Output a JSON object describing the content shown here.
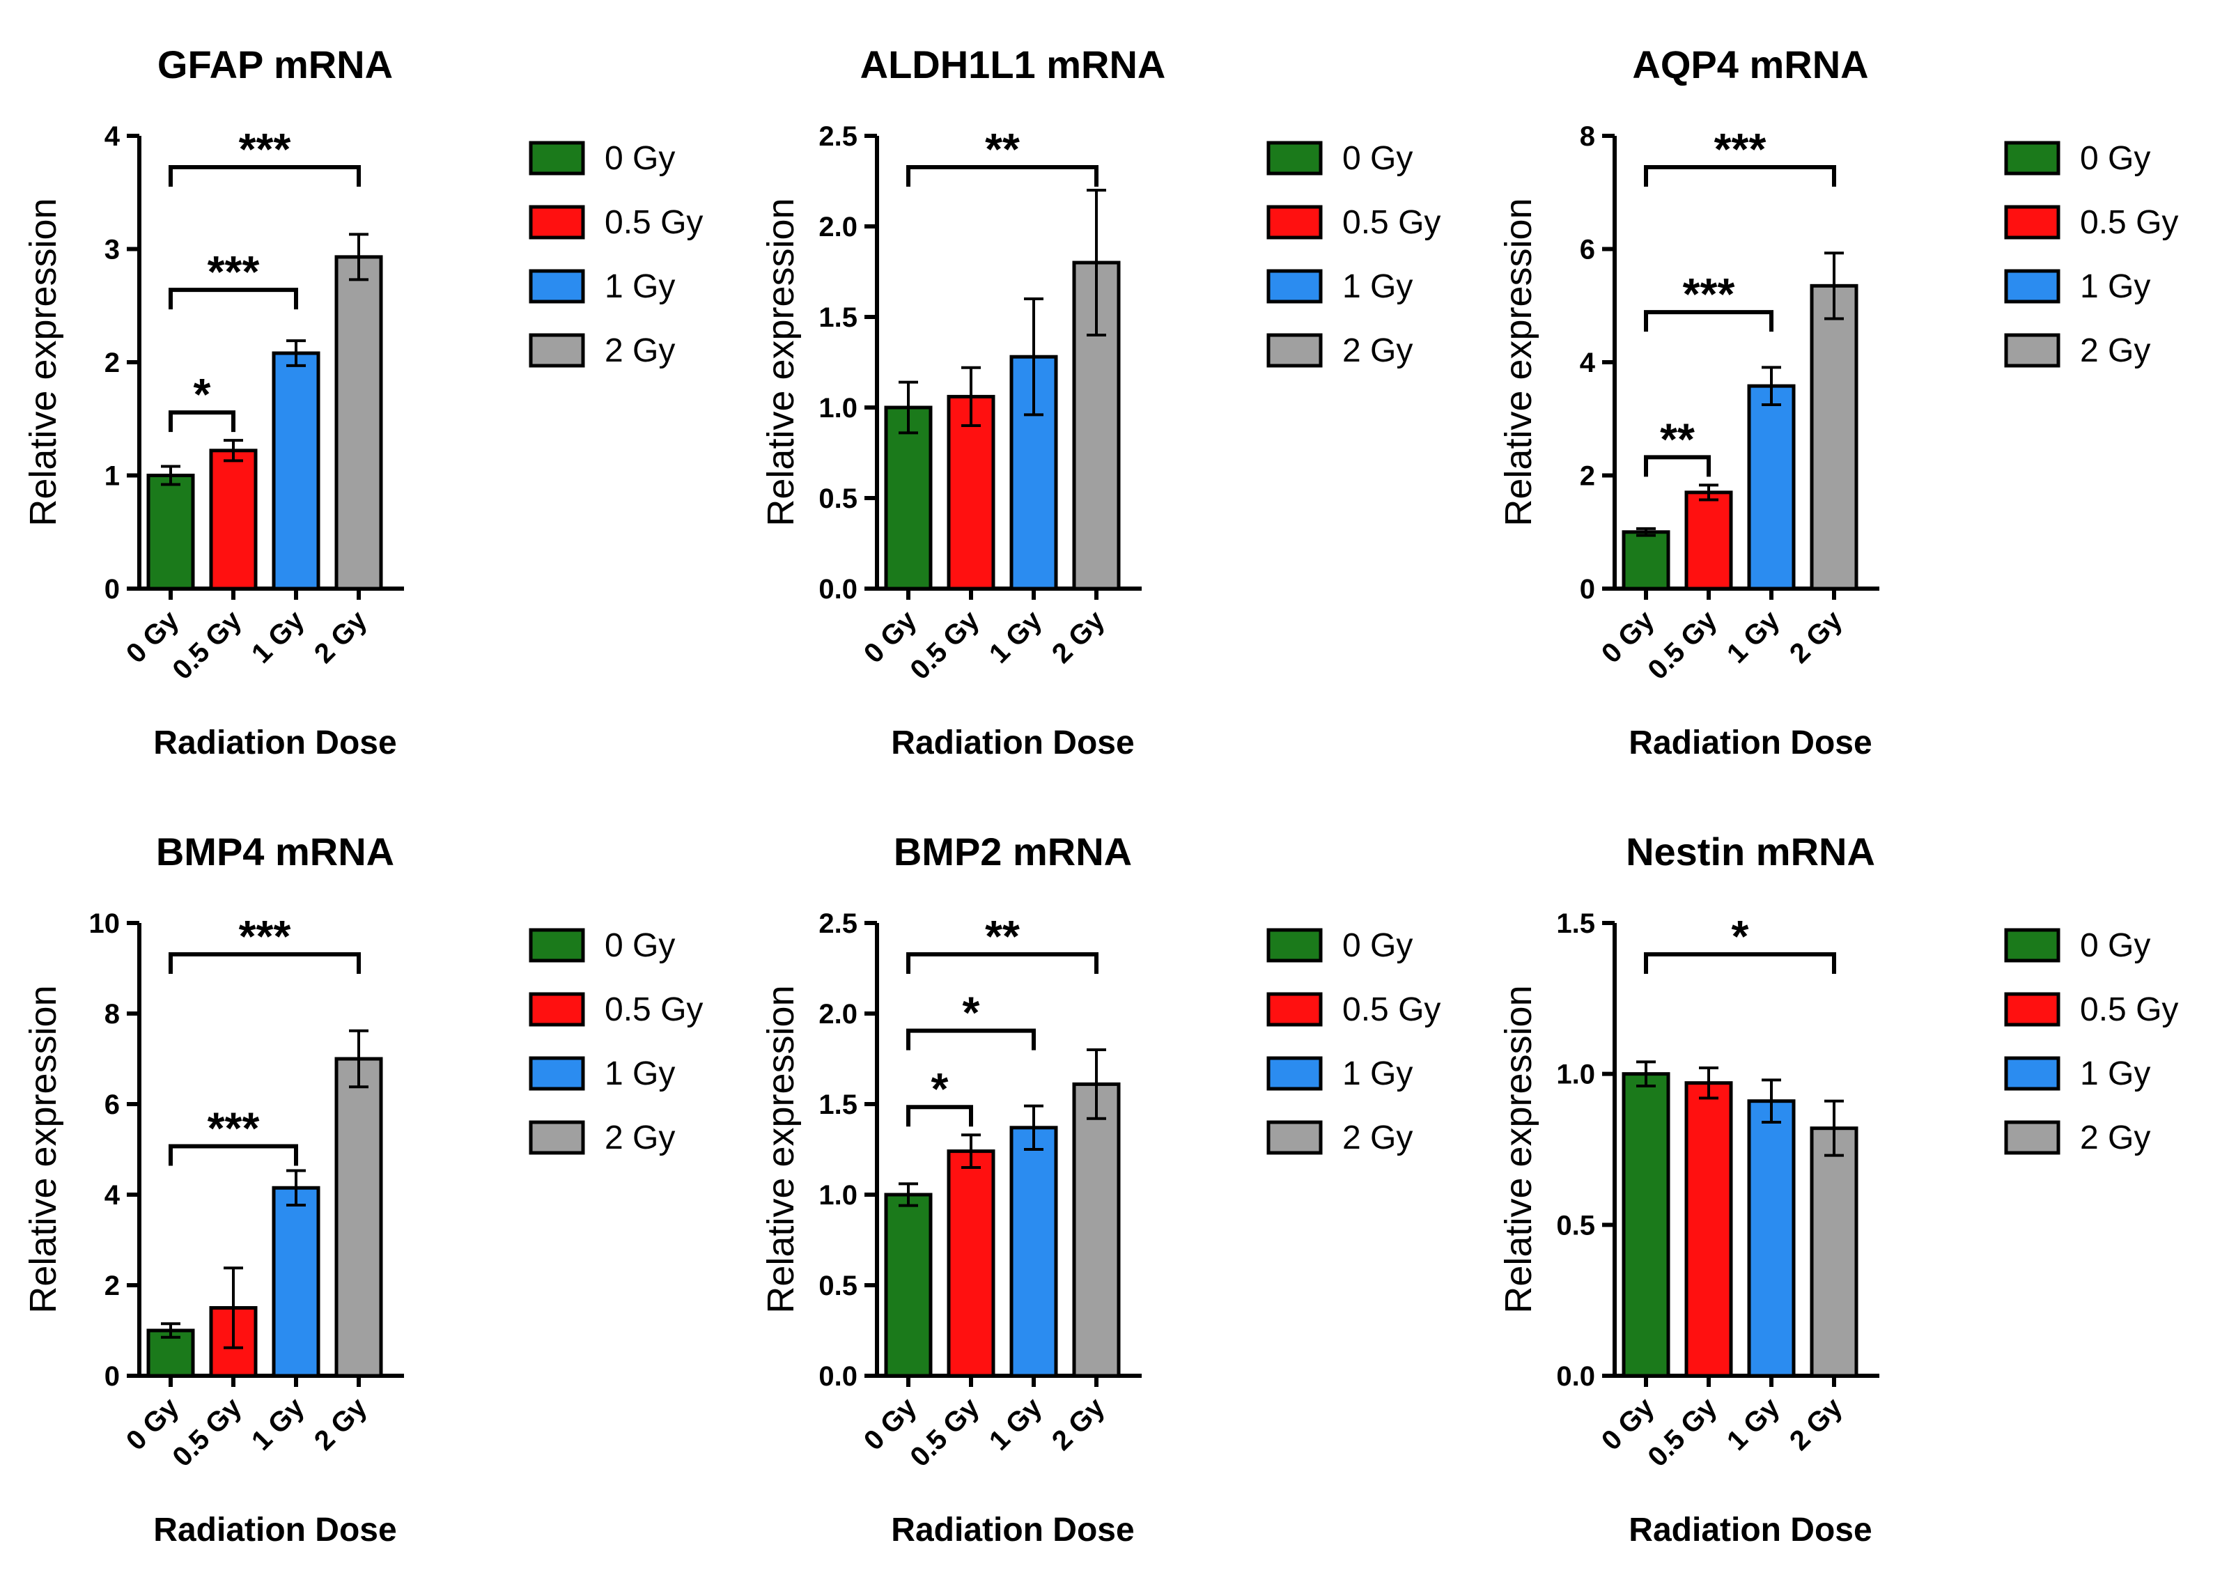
{
  "colors": {
    "0 Gy": "#1b7a1b",
    "0.5 Gy": "#ff1010",
    "1 Gy": "#2b8cf0",
    "2 Gy": "#a0a0a0"
  },
  "chart_data": [
    {
      "type": "bar",
      "title": "GFAP mRNA",
      "xlabel": "Radiation Dose",
      "ylabel": "Relative expression",
      "categories": [
        "0 Gy",
        "0.5 Gy",
        "1 Gy",
        "2 Gy"
      ],
      "values": [
        1.0,
        1.22,
        2.08,
        2.93
      ],
      "errors": [
        0.08,
        0.09,
        0.11,
        0.2
      ],
      "ylim": [
        0,
        4
      ],
      "yticks": [
        "0",
        "1",
        "2",
        "3",
        "4"
      ],
      "legend": [
        "0 Gy",
        "0.5 Gy",
        "1 Gy",
        "2 Gy"
      ],
      "significance": [
        {
          "from": "0 Gy",
          "to": "0.5 Gy",
          "label": "*"
        },
        {
          "from": "0 Gy",
          "to": "1 Gy",
          "label": "***"
        },
        {
          "from": "0 Gy",
          "to": "2 Gy",
          "label": "***"
        }
      ]
    },
    {
      "type": "bar",
      "title": "ALDH1L1 mRNA",
      "xlabel": "Radiation Dose",
      "ylabel": "Relative expression",
      "categories": [
        "0 Gy",
        "0.5 Gy",
        "1 Gy",
        "2 Gy"
      ],
      "values": [
        1.0,
        1.06,
        1.28,
        1.8
      ],
      "errors": [
        0.14,
        0.16,
        0.32,
        0.4
      ],
      "ylim": [
        0,
        2.5
      ],
      "yticks": [
        "0.0",
        "0.5",
        "1.0",
        "1.5",
        "2.0",
        "2.5"
      ],
      "legend": [
        "0 Gy",
        "0.5 Gy",
        "1 Gy",
        "2 Gy"
      ],
      "significance": [
        {
          "from": "0 Gy",
          "to": "2 Gy",
          "label": "**"
        }
      ]
    },
    {
      "type": "bar",
      "title": "AQP4 mRNA",
      "xlabel": "Radiation Dose",
      "ylabel": "Relative expression",
      "categories": [
        "0 Gy",
        "0.5 Gy",
        "1 Gy",
        "2 Gy"
      ],
      "values": [
        1.0,
        1.7,
        3.58,
        5.35
      ],
      "errors": [
        0.06,
        0.13,
        0.33,
        0.58
      ],
      "ylim": [
        0,
        8
      ],
      "yticks": [
        "0",
        "2",
        "4",
        "6",
        "8"
      ],
      "legend": [
        "0 Gy",
        "0.5 Gy",
        "1 Gy",
        "2 Gy"
      ],
      "significance": [
        {
          "from": "0 Gy",
          "to": "0.5 Gy",
          "label": "**"
        },
        {
          "from": "0 Gy",
          "to": "1 Gy",
          "label": "***"
        },
        {
          "from": "0 Gy",
          "to": "2 Gy",
          "label": "***"
        }
      ]
    },
    {
      "type": "bar",
      "title": "BMP4 mRNA",
      "xlabel": "Radiation Dose",
      "ylabel": "Relative expression",
      "categories": [
        "0 Gy",
        "0.5 Gy",
        "1 Gy",
        "2 Gy"
      ],
      "values": [
        1.0,
        1.5,
        4.15,
        7.0
      ],
      "errors": [
        0.15,
        0.88,
        0.38,
        0.62
      ],
      "ylim": [
        0,
        10
      ],
      "yticks": [
        "0",
        "2",
        "4",
        "6",
        "8",
        "10"
      ],
      "legend": [
        "0 Gy",
        "0.5 Gy",
        "1 Gy",
        "2 Gy"
      ],
      "significance": [
        {
          "from": "0 Gy",
          "to": "1 Gy",
          "label": "***"
        },
        {
          "from": "0 Gy",
          "to": "2 Gy",
          "label": "***"
        }
      ]
    },
    {
      "type": "bar",
      "title": "BMP2 mRNA",
      "xlabel": "Radiation Dose",
      "ylabel": "Relative expression",
      "categories": [
        "0 Gy",
        "0.5 Gy",
        "1 Gy",
        "2 Gy"
      ],
      "values": [
        1.0,
        1.24,
        1.37,
        1.61
      ],
      "errors": [
        0.06,
        0.09,
        0.12,
        0.19
      ],
      "ylim": [
        0,
        2.5
      ],
      "yticks": [
        "0.0",
        "0.5",
        "1.0",
        "1.5",
        "2.0",
        "2.5"
      ],
      "legend": [
        "0 Gy",
        "0.5 Gy",
        "1 Gy",
        "2 Gy"
      ],
      "significance": [
        {
          "from": "0 Gy",
          "to": "0.5 Gy",
          "label": "*"
        },
        {
          "from": "0 Gy",
          "to": "1 Gy",
          "label": "*"
        },
        {
          "from": "0 Gy",
          "to": "2 Gy",
          "label": "**"
        }
      ]
    },
    {
      "type": "bar",
      "title": "Nestin mRNA",
      "xlabel": "Radiation Dose",
      "ylabel": "Relative expression",
      "categories": [
        "0 Gy",
        "0.5 Gy",
        "1 Gy",
        "2 Gy"
      ],
      "values": [
        1.0,
        0.97,
        0.91,
        0.82
      ],
      "errors": [
        0.04,
        0.05,
        0.07,
        0.09
      ],
      "ylim": [
        0,
        1.5
      ],
      "yticks": [
        "0.0",
        "0.5",
        "1.0",
        "1.5"
      ],
      "legend": [
        "0 Gy",
        "0.5 Gy",
        "1 Gy",
        "2 Gy"
      ],
      "significance": [
        {
          "from": "0 Gy",
          "to": "2 Gy",
          "label": "*"
        }
      ]
    }
  ]
}
